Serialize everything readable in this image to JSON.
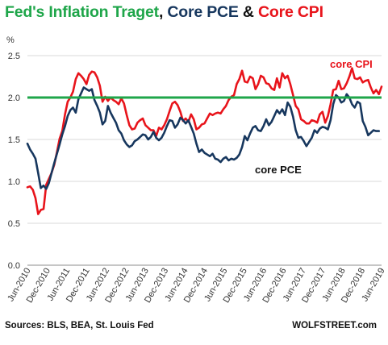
{
  "title_parts": {
    "p1": "Fed's Inflation Traget",
    "sep1": ", ",
    "p2": "Core PCE",
    "sep2": " & ",
    "p3": "Core CPI"
  },
  "colors": {
    "fed": "#1fa64a",
    "pce": "#17375e",
    "cpi": "#e8141b",
    "grid": "#d9d9d9"
  },
  "source": "Sources: BLS, BEA, St. Louis Fed",
  "brand": "WOLFSTREET.com",
  "chart_data": {
    "type": "line",
    "ylabel": "%",
    "ylim": [
      0,
      2.5
    ],
    "yticks": [
      "0.0",
      "0.5",
      "1.0",
      "1.5",
      "2.0",
      "2.5"
    ],
    "grid": "horizontal",
    "x_tick_labels": [
      "Jun-2010",
      "Dec-2010",
      "Jun-2011",
      "Dec-2011",
      "Jun-2012",
      "Dec-2012",
      "Jun-2013",
      "Dec-2013",
      "Jun-2014",
      "Dec-2014",
      "Jun-2015",
      "Dec-2015",
      "Jun-2016",
      "Dec-2016",
      "Jun-2017",
      "Dec-2017",
      "Jun-2018",
      "Dec-2018",
      "Jun-2019"
    ],
    "x_start": "2010-06",
    "fed_target": 2.0,
    "series": [
      {
        "name": "core CPI",
        "key": "cpi",
        "values": [
          0.93,
          0.94,
          0.9,
          0.8,
          0.61,
          0.66,
          0.67,
          0.96,
          1.03,
          1.1,
          1.2,
          1.35,
          1.51,
          1.6,
          1.8,
          1.95,
          2.0,
          2.07,
          2.22,
          2.29,
          2.26,
          2.22,
          2.16,
          2.27,
          2.31,
          2.3,
          2.24,
          2.14,
          1.95,
          2.01,
          1.96,
          2.0,
          1.97,
          1.95,
          1.92,
          1.99,
          1.93,
          1.79,
          1.67,
          1.62,
          1.63,
          1.7,
          1.73,
          1.75,
          1.67,
          1.64,
          1.61,
          1.61,
          1.54,
          1.64,
          1.62,
          1.67,
          1.74,
          1.84,
          1.93,
          1.95,
          1.91,
          1.83,
          1.72,
          1.75,
          1.71,
          1.8,
          1.74,
          1.62,
          1.64,
          1.68,
          1.69,
          1.75,
          1.81,
          1.79,
          1.81,
          1.82,
          1.81,
          1.86,
          1.9,
          1.97,
          2.01,
          2.03,
          2.16,
          2.22,
          2.32,
          2.19,
          2.18,
          2.25,
          2.23,
          2.1,
          2.16,
          2.26,
          2.24,
          2.17,
          2.16,
          2.11,
          2.09,
          2.23,
          2.12,
          2.29,
          2.23,
          2.26,
          2.16,
          2.03,
          1.9,
          1.86,
          1.74,
          1.72,
          1.69,
          1.69,
          1.73,
          1.72,
          1.7,
          1.8,
          1.83,
          1.7,
          1.78,
          1.92,
          2.09,
          2.1,
          2.2,
          2.1,
          2.11,
          2.17,
          2.25,
          2.35,
          2.23,
          2.22,
          2.24,
          2.18,
          2.2,
          2.21,
          2.12,
          2.05,
          2.09,
          2.04,
          2.13
        ]
      },
      {
        "name": "core PCE",
        "key": "pce",
        "values": [
          1.45,
          1.38,
          1.33,
          1.27,
          1.1,
          0.92,
          0.95,
          0.91,
          0.98,
          1.1,
          1.22,
          1.33,
          1.44,
          1.56,
          1.66,
          1.78,
          1.85,
          1.88,
          1.82,
          1.98,
          2.05,
          2.12,
          2.1,
          2.08,
          2.1,
          1.97,
          1.9,
          1.82,
          1.68,
          1.72,
          1.9,
          1.82,
          1.76,
          1.7,
          1.61,
          1.57,
          1.49,
          1.44,
          1.41,
          1.43,
          1.48,
          1.5,
          1.53,
          1.56,
          1.55,
          1.5,
          1.53,
          1.59,
          1.52,
          1.49,
          1.52,
          1.58,
          1.66,
          1.73,
          1.72,
          1.64,
          1.68,
          1.76,
          1.73,
          1.69,
          1.73,
          1.65,
          1.57,
          1.45,
          1.35,
          1.38,
          1.34,
          1.32,
          1.3,
          1.33,
          1.27,
          1.26,
          1.23,
          1.27,
          1.29,
          1.25,
          1.27,
          1.26,
          1.28,
          1.32,
          1.41,
          1.54,
          1.49,
          1.57,
          1.64,
          1.66,
          1.61,
          1.6,
          1.66,
          1.74,
          1.67,
          1.71,
          1.78,
          1.85,
          1.81,
          1.86,
          1.79,
          1.94,
          1.89,
          1.77,
          1.61,
          1.52,
          1.53,
          1.48,
          1.42,
          1.47,
          1.52,
          1.61,
          1.58,
          1.63,
          1.65,
          1.64,
          1.62,
          1.73,
          1.92,
          2.03,
          2.0,
          1.94,
          1.96,
          2.04,
          2.0,
          1.92,
          1.88,
          1.95,
          1.93,
          1.72,
          1.65,
          1.55,
          1.58,
          1.61,
          1.6,
          1.6
        ]
      }
    ],
    "annotations": [
      {
        "text": "core CPI",
        "series": "cpi"
      },
      {
        "text": "core PCE",
        "series": "pce"
      }
    ]
  }
}
